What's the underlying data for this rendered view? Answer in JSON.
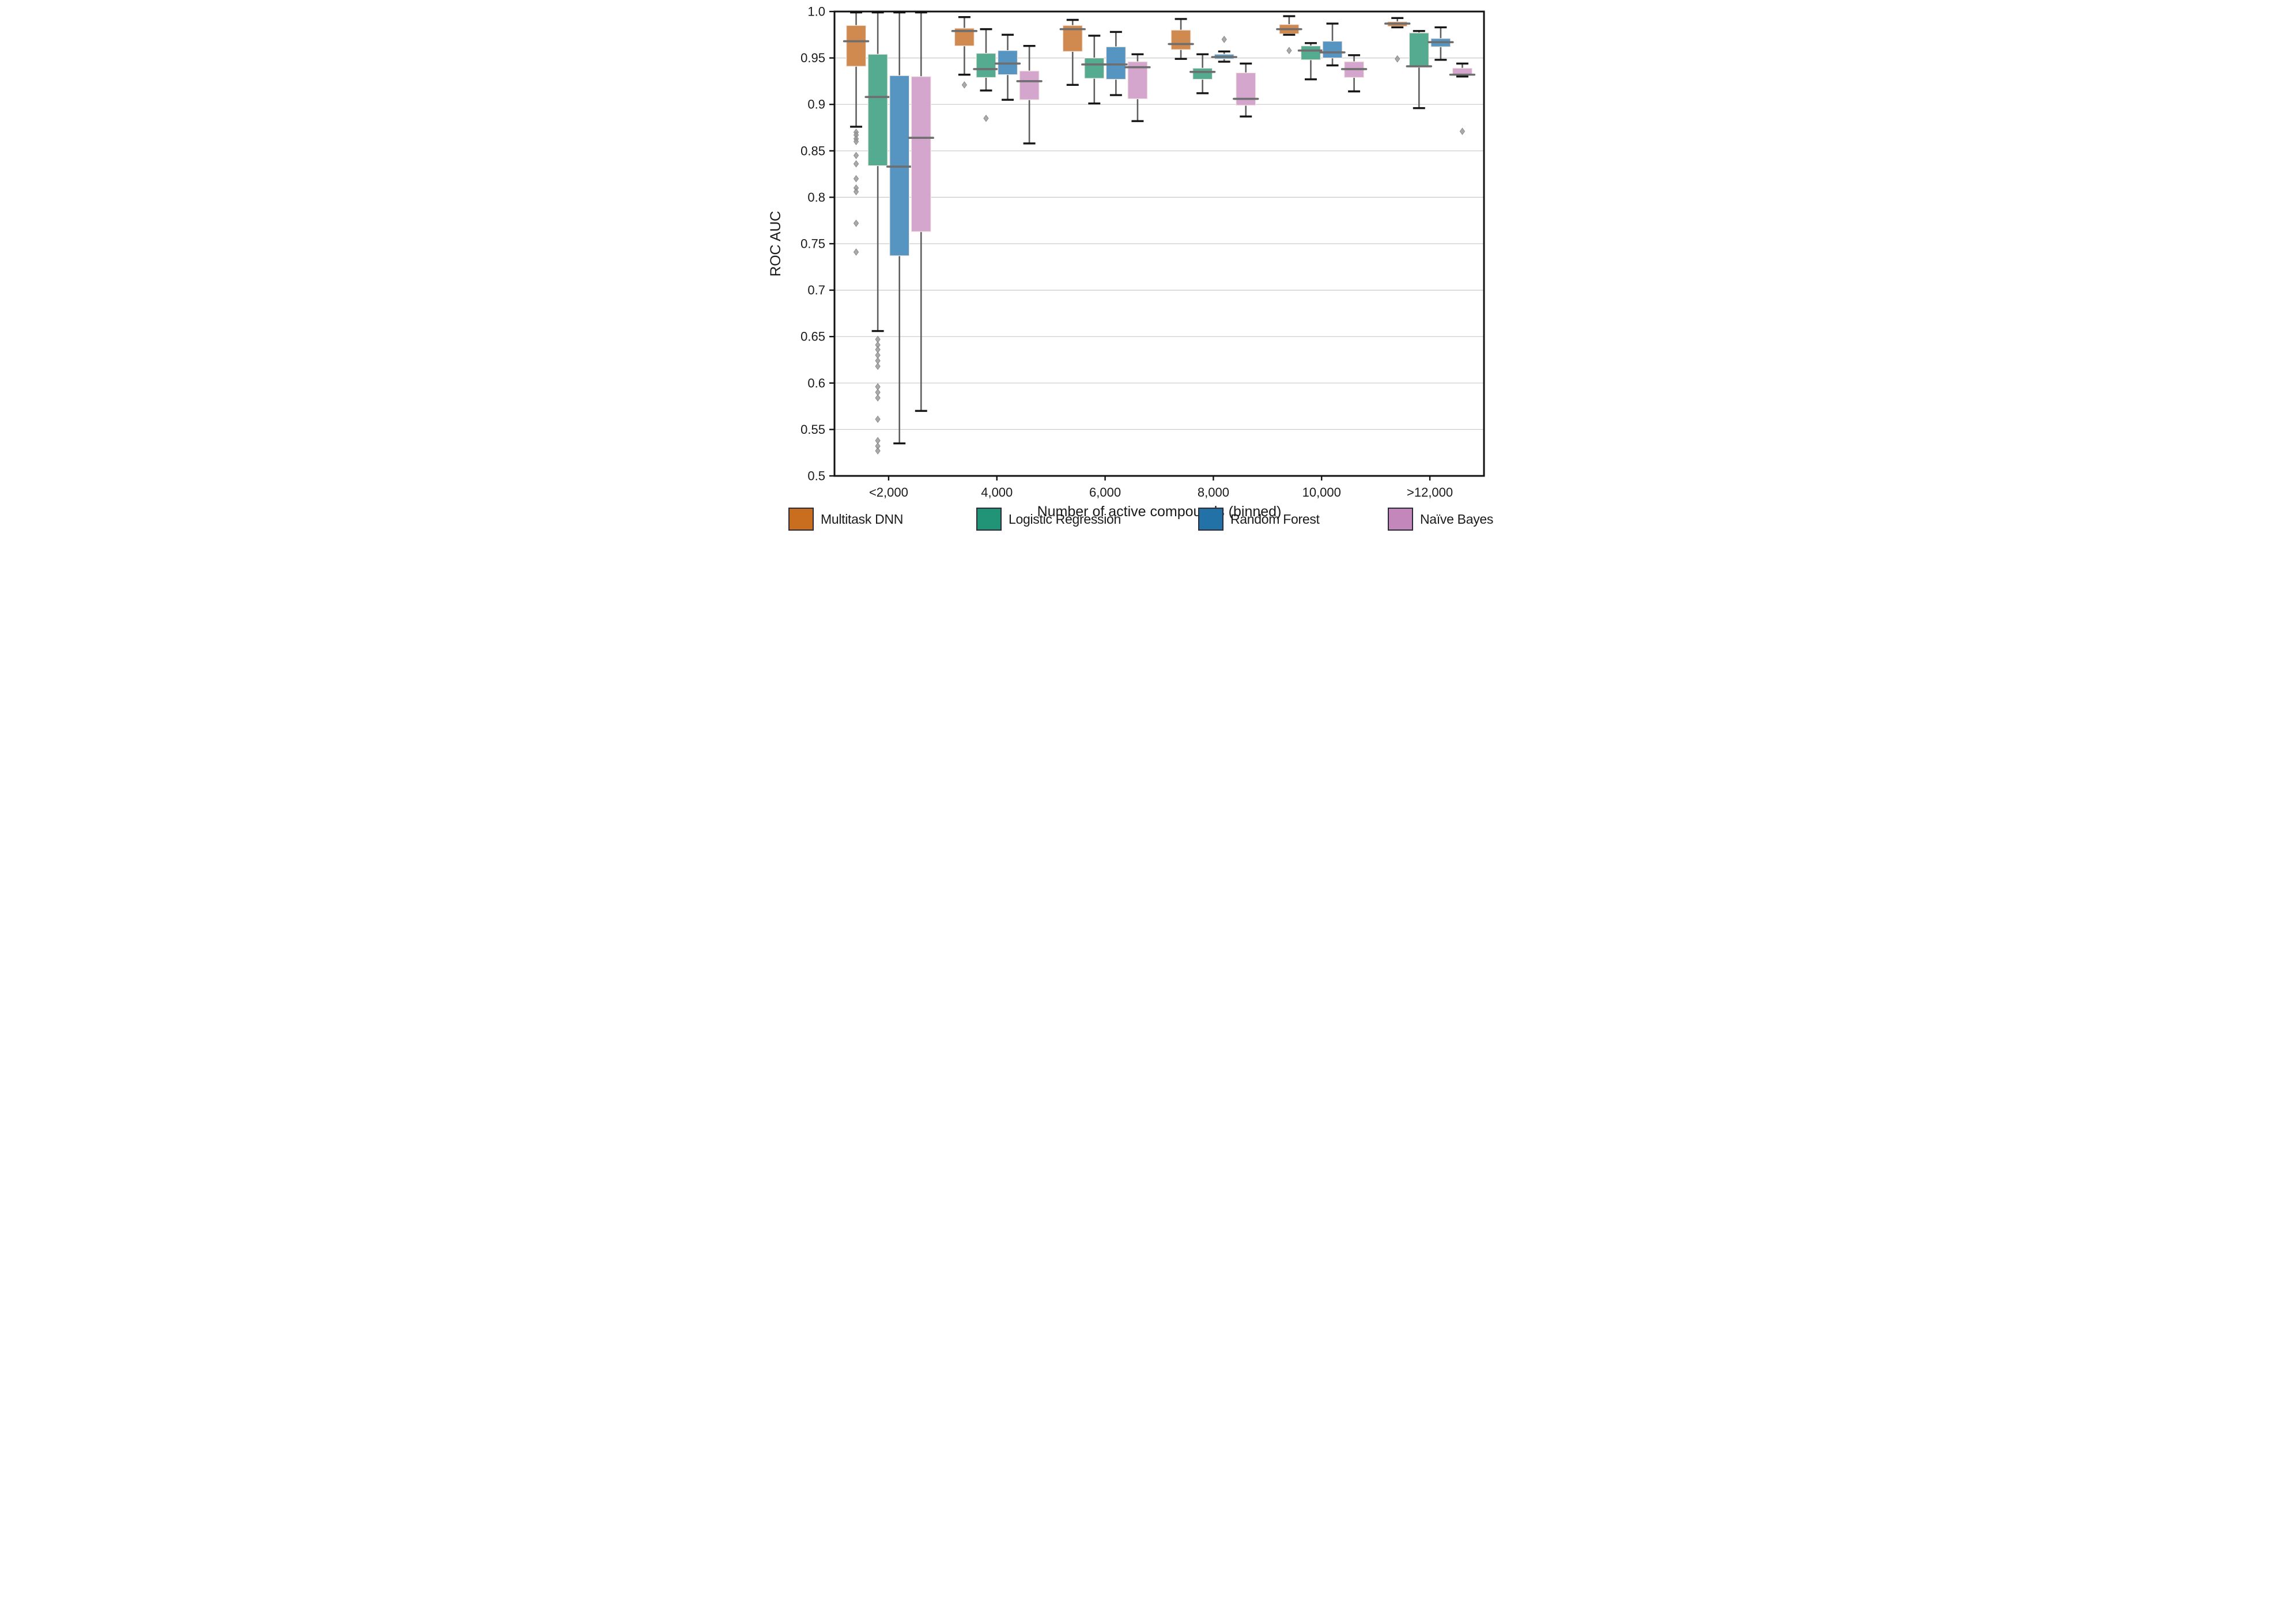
{
  "figure_title": "",
  "chart_data": {
    "type": "boxplot",
    "title": "",
    "xlabel": "Number of active compounds (binned)",
    "ylabel": "ROC AUC",
    "ylim": [
      0.5,
      1.0
    ],
    "yticks": [
      1.0,
      0.95,
      0.9,
      0.85,
      0.8,
      0.75,
      0.7,
      0.65,
      0.6,
      0.55,
      0.5
    ],
    "ytick_labels": [
      "1.0",
      "0.95",
      "0.9",
      "0.85",
      "0.8",
      "0.75",
      "0.7",
      "0.65",
      "0.6",
      "0.55",
      "0.5"
    ],
    "categories": [
      "<2,000",
      "4,000",
      "6,000",
      "8,000",
      "10,000",
      ">12,000"
    ],
    "grid": true,
    "legend_position": "bottom",
    "style": {
      "grid_color": "#c9c9c9",
      "spine_color": "#111111",
      "median_color": "#6e6e6e",
      "whisker_color": "#5f5f5f",
      "cap_color": "#151515",
      "flier_color": "#9b9b9b",
      "box_edge_color": "#f3e9e2",
      "text_color": "#1a1a1a"
    },
    "series": [
      {
        "name": "Multitask DNN",
        "box_color": "#d0894f",
        "legend_color": "#c96d1f",
        "boxes": [
          {
            "whislo": 0.876,
            "q1": 0.941,
            "med": 0.968,
            "q3": 0.985,
            "whishi": 0.999,
            "fliers": [
              0.87,
              0.867,
              0.863,
              0.86,
              0.845,
              0.836,
              0.82,
              0.81,
              0.806,
              0.772,
              0.741
            ]
          },
          {
            "whislo": 0.932,
            "q1": 0.963,
            "med": 0.979,
            "q3": 0.982,
            "whishi": 0.994,
            "fliers": [
              0.921
            ]
          },
          {
            "whislo": 0.921,
            "q1": 0.957,
            "med": 0.981,
            "q3": 0.985,
            "whishi": 0.991,
            "fliers": []
          },
          {
            "whislo": 0.949,
            "q1": 0.959,
            "med": 0.965,
            "q3": 0.98,
            "whishi": 0.992,
            "fliers": []
          },
          {
            "whislo": 0.975,
            "q1": 0.976,
            "med": 0.981,
            "q3": 0.986,
            "whishi": 0.995,
            "fliers": [
              0.958
            ]
          },
          {
            "whislo": 0.983,
            "q1": 0.984,
            "med": 0.987,
            "q3": 0.989,
            "whishi": 0.993,
            "fliers": [
              0.949
            ]
          }
        ]
      },
      {
        "name": "Logistic Regression",
        "box_color": "#55ab90",
        "legend_color": "#219478",
        "boxes": [
          {
            "whislo": 0.656,
            "q1": 0.834,
            "med": 0.908,
            "q3": 0.954,
            "whishi": 0.999,
            "fliers": [
              0.647,
              0.641,
              0.636,
              0.63,
              0.624,
              0.618,
              0.596,
              0.59,
              0.584,
              0.561,
              0.538,
              0.532,
              0.527
            ]
          },
          {
            "whislo": 0.915,
            "q1": 0.929,
            "med": 0.938,
            "q3": 0.955,
            "whishi": 0.981,
            "fliers": [
              0.885
            ]
          },
          {
            "whislo": 0.901,
            "q1": 0.928,
            "med": 0.943,
            "q3": 0.95,
            "whishi": 0.974,
            "fliers": []
          },
          {
            "whislo": 0.912,
            "q1": 0.927,
            "med": 0.935,
            "q3": 0.939,
            "whishi": 0.954,
            "fliers": []
          },
          {
            "whislo": 0.927,
            "q1": 0.948,
            "med": 0.958,
            "q3": 0.963,
            "whishi": 0.966,
            "fliers": []
          },
          {
            "whislo": 0.896,
            "q1": 0.94,
            "med": 0.941,
            "q3": 0.977,
            "whishi": 0.979,
            "fliers": []
          }
        ]
      },
      {
        "name": "Random Forest",
        "box_color": "#5694c1",
        "legend_color": "#2272a8",
        "boxes": [
          {
            "whislo": 0.535,
            "q1": 0.737,
            "med": 0.833,
            "q3": 0.931,
            "whishi": 0.999,
            "fliers": []
          },
          {
            "whislo": 0.905,
            "q1": 0.932,
            "med": 0.944,
            "q3": 0.958,
            "whishi": 0.975,
            "fliers": []
          },
          {
            "whislo": 0.91,
            "q1": 0.927,
            "med": 0.943,
            "q3": 0.962,
            "whishi": 0.978,
            "fliers": []
          },
          {
            "whislo": 0.946,
            "q1": 0.949,
            "med": 0.951,
            "q3": 0.954,
            "whishi": 0.957,
            "fliers": [
              0.97
            ]
          },
          {
            "whislo": 0.942,
            "q1": 0.95,
            "med": 0.956,
            "q3": 0.968,
            "whishi": 0.987,
            "fliers": []
          },
          {
            "whislo": 0.948,
            "q1": 0.962,
            "med": 0.967,
            "q3": 0.971,
            "whishi": 0.983,
            "fliers": []
          }
        ]
      },
      {
        "name": "Naïve Bayes",
        "box_color": "#d4a6ce",
        "legend_color": "#c487bb",
        "boxes": [
          {
            "whislo": 0.57,
            "q1": 0.763,
            "med": 0.864,
            "q3": 0.93,
            "whishi": 0.999,
            "fliers": []
          },
          {
            "whislo": 0.858,
            "q1": 0.905,
            "med": 0.925,
            "q3": 0.936,
            "whishi": 0.963,
            "fliers": []
          },
          {
            "whislo": 0.882,
            "q1": 0.906,
            "med": 0.94,
            "q3": 0.946,
            "whishi": 0.954,
            "fliers": []
          },
          {
            "whislo": 0.887,
            "q1": 0.899,
            "med": 0.906,
            "q3": 0.934,
            "whishi": 0.944,
            "fliers": []
          },
          {
            "whislo": 0.914,
            "q1": 0.929,
            "med": 0.938,
            "q3": 0.946,
            "whishi": 0.953,
            "fliers": []
          },
          {
            "whislo": 0.93,
            "q1": 0.932,
            "med": 0.932,
            "q3": 0.939,
            "whishi": 0.944,
            "fliers": [
              0.871
            ]
          }
        ]
      }
    ]
  }
}
